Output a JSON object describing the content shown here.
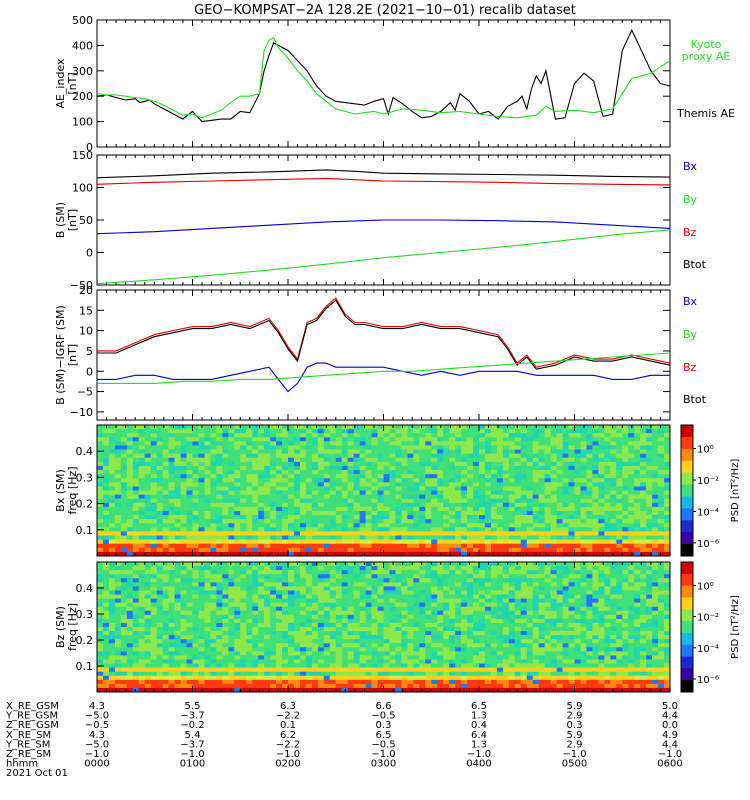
{
  "title": "GEO−KOMPSAT−2A 128.2E (2021−10−01) recalib dataset",
  "colors": {
    "black": "#000000",
    "red": "#e00000",
    "green": "#22dd22",
    "blue": "#0000cc",
    "kyoto": "#22dd22"
  },
  "chart_data": [
    {
      "type": "line",
      "id": "ae",
      "ylabel": "AE_index",
      "yunit": "[nT]",
      "ylim": [
        0,
        500
      ],
      "yticks": [
        0,
        100,
        200,
        300,
        400,
        500
      ],
      "legend": [
        {
          "name": "Kyoto",
          "color": "green"
        },
        {
          "name": "proxy AE",
          "color": "green"
        },
        {
          "name": "Themis AE",
          "color": "black"
        }
      ],
      "series": [
        {
          "name": "Themis AE",
          "color": "black",
          "x": [
            0,
            10,
            20,
            30,
            40,
            45,
            50,
            55,
            60,
            70,
            80,
            90,
            100,
            110,
            120,
            130,
            140,
            150,
            160,
            170,
            175,
            180,
            185,
            190,
            200,
            210,
            220,
            230,
            240,
            250,
            260,
            270,
            280,
            290,
            300,
            305,
            310,
            320,
            330,
            340,
            350,
            360,
            370,
            375,
            380,
            390,
            400,
            410,
            420,
            430,
            440,
            445,
            450,
            455,
            460,
            465,
            470,
            480,
            490,
            500,
            510,
            520,
            530,
            540,
            550,
            560,
            570,
            580,
            590,
            600
          ],
          "y": [
            200,
            205,
            195,
            185,
            190,
            175,
            180,
            185,
            170,
            150,
            130,
            110,
            140,
            100,
            105,
            110,
            110,
            140,
            135,
            210,
            300,
            360,
            410,
            400,
            380,
            340,
            300,
            240,
            200,
            180,
            175,
            170,
            165,
            180,
            190,
            130,
            195,
            170,
            140,
            115,
            120,
            140,
            175,
            145,
            210,
            180,
            130,
            140,
            110,
            160,
            180,
            200,
            150,
            230,
            280,
            250,
            300,
            110,
            115,
            250,
            290,
            260,
            120,
            130,
            380,
            460,
            380,
            300,
            250,
            240
          ]
        },
        {
          "name": "Kyoto proxy AE",
          "color": "green",
          "x": [
            0,
            10,
            20,
            30,
            40,
            50,
            60,
            70,
            80,
            90,
            100,
            110,
            120,
            130,
            140,
            150,
            160,
            170,
            175,
            180,
            185,
            190,
            200,
            210,
            220,
            230,
            240,
            250,
            260,
            270,
            280,
            290,
            300,
            320,
            340,
            360,
            380,
            400,
            420,
            440,
            460,
            470,
            480,
            500,
            520,
            540,
            560,
            580,
            600
          ],
          "y": [
            210,
            205,
            205,
            200,
            195,
            190,
            180,
            165,
            145,
            125,
            130,
            115,
            130,
            145,
            175,
            200,
            200,
            210,
            380,
            420,
            430,
            390,
            350,
            300,
            260,
            210,
            180,
            150,
            140,
            130,
            135,
            140,
            130,
            150,
            145,
            135,
            140,
            130,
            120,
            115,
            125,
            160,
            140,
            145,
            135,
            150,
            270,
            290,
            340
          ]
        }
      ]
    },
    {
      "type": "line",
      "id": "bsm",
      "ylabel": "B (SM)",
      "yunit": "[nT]",
      "ylim": [
        -50,
        150
      ],
      "yticks": [
        -50,
        0,
        50,
        100,
        150
      ],
      "legend": [
        {
          "name": "Bx",
          "color": "blue"
        },
        {
          "name": "By",
          "color": "green"
        },
        {
          "name": "Bz",
          "color": "red"
        },
        {
          "name": "Btot",
          "color": "black"
        }
      ],
      "series": [
        {
          "name": "Btot",
          "color": "black",
          "x": [
            0,
            60,
            120,
            180,
            240,
            270,
            300,
            360,
            420,
            480,
            540,
            600
          ],
          "y": [
            115,
            118,
            122,
            124,
            127,
            125,
            122,
            121,
            120,
            119,
            117,
            116
          ]
        },
        {
          "name": "Bz",
          "color": "red",
          "x": [
            0,
            60,
            120,
            180,
            240,
            270,
            300,
            360,
            420,
            480,
            540,
            600
          ],
          "y": [
            105,
            108,
            110,
            112,
            114,
            112,
            110,
            109,
            108,
            106,
            105,
            104
          ]
        },
        {
          "name": "Bx",
          "color": "blue",
          "x": [
            0,
            60,
            120,
            180,
            240,
            300,
            360,
            420,
            480,
            540,
            600
          ],
          "y": [
            29,
            32,
            37,
            42,
            47,
            50,
            50,
            49,
            47,
            42,
            37
          ]
        },
        {
          "name": "By",
          "color": "green",
          "x": [
            0,
            60,
            120,
            180,
            240,
            300,
            360,
            420,
            480,
            540,
            600
          ],
          "y": [
            -48,
            -42,
            -35,
            -27,
            -18,
            -8,
            0,
            8,
            17,
            27,
            35
          ]
        }
      ]
    },
    {
      "type": "line",
      "id": "bigrf",
      "ylabel": "B (SM)−IGRF (SM)",
      "yunit": "[nT]",
      "ylim": [
        -12,
        20
      ],
      "yticks": [
        -10,
        -5,
        0,
        5,
        10,
        15,
        20
      ],
      "legend": [
        {
          "name": "Bx",
          "color": "blue"
        },
        {
          "name": "By",
          "color": "green"
        },
        {
          "name": "Bz",
          "color": "red"
        },
        {
          "name": "Btot",
          "color": "black"
        }
      ],
      "series": [
        {
          "name": "Bz",
          "color": "red",
          "x": [
            0,
            20,
            40,
            60,
            80,
            100,
            120,
            140,
            160,
            180,
            190,
            200,
            210,
            220,
            230,
            240,
            250,
            260,
            270,
            280,
            300,
            320,
            340,
            360,
            380,
            400,
            420,
            430,
            440,
            450,
            460,
            480,
            500,
            520,
            540,
            560,
            580,
            600
          ],
          "y": [
            5,
            5,
            7,
            9,
            10,
            11,
            11,
            12,
            11,
            13,
            10,
            6,
            3,
            12,
            13,
            16,
            18,
            14,
            12,
            12,
            11,
            11,
            12,
            11,
            11,
            10,
            9,
            6,
            2,
            4,
            1,
            2,
            4,
            3,
            3,
            4,
            3,
            2
          ]
        },
        {
          "name": "Btot",
          "color": "black",
          "x": [
            0,
            20,
            40,
            60,
            80,
            100,
            120,
            140,
            160,
            180,
            190,
            200,
            210,
            220,
            230,
            240,
            250,
            260,
            270,
            280,
            300,
            320,
            340,
            360,
            380,
            400,
            420,
            430,
            440,
            450,
            460,
            480,
            500,
            520,
            540,
            560,
            580,
            600
          ],
          "y": [
            4.5,
            4.5,
            6.5,
            8.5,
            9.5,
            10.5,
            10.5,
            11.5,
            10.5,
            12.5,
            9.5,
            5.5,
            2.5,
            11.5,
            12.5,
            15.5,
            17.5,
            13.5,
            11.5,
            11.5,
            10.5,
            10.5,
            11.5,
            10.5,
            10.5,
            9.5,
            8.5,
            5.5,
            1.5,
            3.5,
            0.5,
            1.5,
            3.5,
            2.5,
            2.5,
            3.5,
            2.5,
            1.5
          ]
        },
        {
          "name": "Bx",
          "color": "blue",
          "x": [
            0,
            20,
            40,
            60,
            80,
            100,
            120,
            140,
            160,
            180,
            190,
            200,
            210,
            220,
            230,
            240,
            250,
            260,
            280,
            300,
            320,
            340,
            360,
            380,
            400,
            420,
            440,
            460,
            480,
            500,
            520,
            540,
            560,
            580,
            600
          ],
          "y": [
            -2,
            -2,
            -1,
            -1,
            -2,
            -2,
            -2,
            -1,
            0,
            1,
            -2,
            -5,
            -3,
            1,
            2,
            2,
            1,
            1,
            1,
            1,
            0,
            -1,
            0,
            -1,
            0,
            0,
            0,
            -1,
            -1,
            -1,
            -1,
            -2,
            -2,
            -1,
            -1
          ]
        },
        {
          "name": "By",
          "color": "green",
          "x": [
            0,
            30,
            60,
            90,
            120,
            150,
            180,
            210,
            240,
            270,
            300,
            330,
            360,
            390,
            420,
            450,
            480,
            510,
            540,
            570,
            600
          ],
          "y": [
            -3,
            -3,
            -3,
            -2.5,
            -2.5,
            -2,
            -2,
            -1.5,
            -1,
            -0.5,
            0,
            0,
            0.5,
            1,
            1.5,
            2,
            2.5,
            3,
            3.5,
            4,
            4.5
          ]
        }
      ]
    },
    {
      "type": "heatmap",
      "id": "spec-bx",
      "ylabel": "Bx (SM)",
      "yunit": "freq [Hz]",
      "ylim": [
        0,
        0.5
      ],
      "yticks": [
        0.1,
        0.2,
        0.3,
        0.4
      ],
      "colorbar": {
        "label": "PSD [nT²/Hz]",
        "ticks": [
          "10⁰",
          "10⁻²",
          "10⁻⁴",
          "10⁻⁶"
        ]
      }
    },
    {
      "type": "heatmap",
      "id": "spec-bz",
      "ylabel": "Bz (SM)",
      "yunit": "freq [Hz]",
      "ylim": [
        0,
        0.5
      ],
      "yticks": [
        0.1,
        0.2,
        0.3,
        0.4
      ],
      "colorbar": {
        "label": "PSD [nT²/Hz]",
        "ticks": [
          "10⁰",
          "10⁻²",
          "10⁻⁴",
          "10⁻⁶"
        ]
      }
    }
  ],
  "xaxis": {
    "xlim": [
      0,
      600
    ],
    "tick_x": [
      0,
      100,
      200,
      300,
      400,
      500,
      600
    ],
    "row_labels": [
      "X_RE_GSM",
      "Y_RE_GSM",
      "Z_RE_GSM",
      "X_RE_SM",
      "Y_RE_SM",
      "Z_RE_SM",
      "hhmm"
    ],
    "rows": [
      [
        "4.3",
        "5.5",
        "6.3",
        "6.6",
        "6.5",
        "5.9",
        "5.0"
      ],
      [
        "−5.0",
        "−3.7",
        "−2.2",
        "−0.5",
        "1.3",
        "2.9",
        "4.4"
      ],
      [
        "−0.5",
        "−0.2",
        "0.1",
        "0.3",
        "0.4",
        "0.3",
        "0.0"
      ],
      [
        "4.3",
        "5.4",
        "6.2",
        "6.5",
        "6.4",
        "5.9",
        "4.9"
      ],
      [
        "−5.0",
        "−3.7",
        "−2.2",
        "−0.5",
        "1.3",
        "2.9",
        "4.4"
      ],
      [
        "−1.0",
        "−1.0",
        "−1.0",
        "−1.0",
        "−1.0",
        "−1.0",
        "−1.0"
      ],
      [
        "0000",
        "0100",
        "0200",
        "0300",
        "0400",
        "0500",
        "0600"
      ]
    ],
    "date": "2021 Oct 01"
  }
}
